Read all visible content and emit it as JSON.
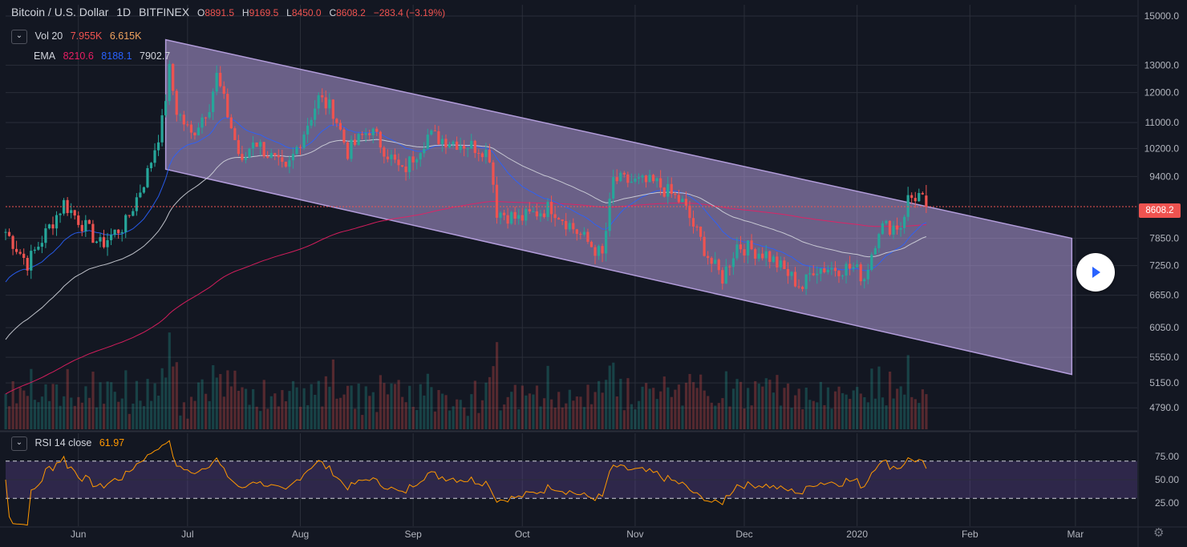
{
  "symbol": {
    "name": "Bitcoin / U.S. Dollar",
    "interval": "1D",
    "exchange": "BITFINEX",
    "open_label": "O",
    "open": "8891.5",
    "high_label": "H",
    "high": "9169.5",
    "low_label": "L",
    "low": "8450.0",
    "close_label": "C",
    "close": "8608.2",
    "change": "−283.4 (−3.19%)"
  },
  "volume_legend": {
    "label": "Vol 20",
    "v1": "7.955K",
    "v2": "6.615K"
  },
  "ema_legend": {
    "label": "EMA",
    "v1": "8210.6",
    "v2": "8188.1",
    "v3": "7902.7"
  },
  "rsi_legend": {
    "label": "RSI 14 close",
    "value": "61.97"
  },
  "price_tag": "8608.2",
  "colors": {
    "background": "#131722",
    "grid": "#2a2e39",
    "up": "#26a69a",
    "down": "#ef5350",
    "ema1": "#e91e63",
    "ema2": "#2962ff",
    "ema3": "#d1d4dc",
    "channel": "#b39ddb",
    "rsi": "#ff9800",
    "rsi_band": "#7e57c2"
  },
  "icons": {
    "collapse": "chevron-down-icon",
    "play": "play-icon",
    "settings": "gear-icon"
  },
  "chart_data": {
    "type": "candlestick",
    "title": "Bitcoin / U.S. Dollar 1D BITFINEX",
    "y_axis": {
      "scale": "log",
      "ticks": [
        4790,
        5150,
        5550,
        6050,
        6650,
        7250,
        7850,
        9400,
        10200,
        11000,
        12000,
        13000,
        15000
      ],
      "tick_labels": [
        "4790.0",
        "5150.0",
        "5550.0",
        "6050.0",
        "6650.0",
        "7250.0",
        "7850.0",
        "9400.0",
        "10200.0",
        "11000.0",
        "12000.0",
        "13000.0",
        "15000.0"
      ],
      "range": [
        4500,
        15500
      ]
    },
    "x_axis": {
      "labels": [
        "Jun",
        "Jul",
        "Aug",
        "Sep",
        "Oct",
        "Nov",
        "Dec",
        "2020",
        "Feb",
        "Mar"
      ],
      "label_dates": [
        "2019-06-01",
        "2019-07-01",
        "2019-08-01",
        "2019-09-01",
        "2019-10-01",
        "2019-11-01",
        "2019-12-01",
        "2020-01-01",
        "2020-02-01",
        "2020-03-01"
      ],
      "range": [
        "2019-05-12",
        "2020-03-18"
      ]
    },
    "price_anchors": [
      {
        "date": "2019-05-12",
        "close": 8000
      },
      {
        "date": "2019-05-18",
        "close": 7300
      },
      {
        "date": "2019-05-28",
        "close": 8700
      },
      {
        "date": "2019-06-03",
        "close": 8100
      },
      {
        "date": "2019-06-07",
        "close": 7700
      },
      {
        "date": "2019-06-14",
        "close": 8200
      },
      {
        "date": "2019-06-20",
        "close": 9500
      },
      {
        "date": "2019-06-24",
        "close": 11000
      },
      {
        "date": "2019-06-26",
        "close": 12800
      },
      {
        "date": "2019-06-28",
        "close": 11400
      },
      {
        "date": "2019-07-02",
        "close": 10600
      },
      {
        "date": "2019-07-07",
        "close": 11600
      },
      {
        "date": "2019-07-09",
        "close": 12600
      },
      {
        "date": "2019-07-16",
        "close": 9700
      },
      {
        "date": "2019-07-19",
        "close": 10500
      },
      {
        "date": "2019-07-28",
        "close": 9500
      },
      {
        "date": "2019-08-06",
        "close": 11800
      },
      {
        "date": "2019-08-10",
        "close": 11400
      },
      {
        "date": "2019-08-14",
        "close": 10100
      },
      {
        "date": "2019-08-20",
        "close": 10800
      },
      {
        "date": "2019-08-29",
        "close": 9500
      },
      {
        "date": "2019-09-05",
        "close": 10600
      },
      {
        "date": "2019-09-20",
        "close": 10200
      },
      {
        "date": "2019-09-22",
        "close": 10000
      },
      {
        "date": "2019-09-24",
        "close": 8500
      },
      {
        "date": "2019-09-30",
        "close": 8300
      },
      {
        "date": "2019-10-09",
        "close": 8600
      },
      {
        "date": "2019-10-16",
        "close": 8000
      },
      {
        "date": "2019-10-23",
        "close": 7450
      },
      {
        "date": "2019-10-26",
        "close": 9300
      },
      {
        "date": "2019-11-07",
        "close": 9200
      },
      {
        "date": "2019-11-14",
        "close": 8700
      },
      {
        "date": "2019-11-22",
        "close": 7300
      },
      {
        "date": "2019-11-25",
        "close": 7000
      },
      {
        "date": "2019-11-29",
        "close": 7700
      },
      {
        "date": "2019-12-07",
        "close": 7500
      },
      {
        "date": "2019-12-17",
        "close": 6800
      },
      {
        "date": "2019-12-20",
        "close": 7200
      },
      {
        "date": "2019-12-31",
        "close": 7200
      },
      {
        "date": "2020-01-03",
        "close": 7000
      },
      {
        "date": "2020-01-07",
        "close": 8100
      },
      {
        "date": "2020-01-13",
        "close": 8150
      },
      {
        "date": "2020-01-15",
        "close": 8800
      },
      {
        "date": "2020-01-18",
        "close": 8900
      },
      {
        "date": "2020-01-20",
        "close": 8608.2
      }
    ],
    "last_candle": {
      "date": "2020-01-20",
      "open": 8891.5,
      "high": 9169.5,
      "low": 8450.0,
      "close": 8608.2,
      "change": -283.4,
      "change_pct": -3.19
    },
    "ema_last": [
      8210.6,
      8188.1,
      7902.7
    ],
    "ema_periods_shown": [
      "fast",
      "medium",
      "slow"
    ],
    "volume_last": [
      7955,
      6615
    ],
    "channel": {
      "upper": [
        {
          "date": "2019-06-25",
          "price": 14000
        },
        {
          "date": "2020-02-29",
          "price": 7850
        }
      ],
      "lower": [
        {
          "date": "2019-06-25",
          "price": 9600
        },
        {
          "date": "2020-02-29",
          "price": 5280
        }
      ]
    },
    "rsi": {
      "ticks": [
        25,
        50,
        75
      ],
      "tick_labels": [
        "25.00",
        "50.00",
        "75.00"
      ],
      "bands": [
        30,
        70
      ],
      "last": 61.97
    }
  }
}
